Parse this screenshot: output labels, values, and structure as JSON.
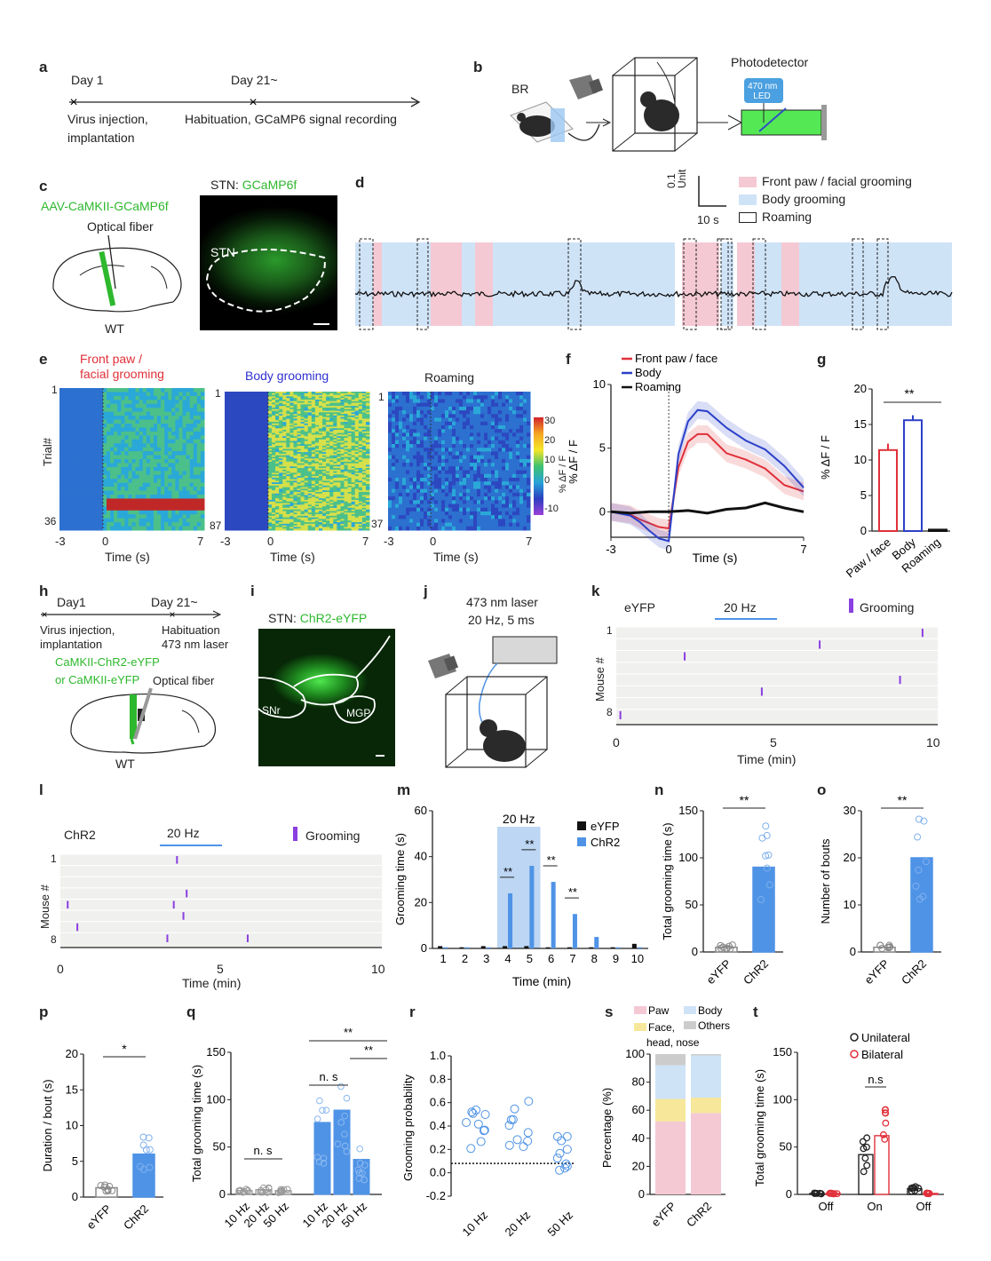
{
  "labels": {
    "a": "a",
    "b": "b",
    "c": "c",
    "d": "d",
    "e": "e",
    "f": "f",
    "g": "g",
    "h": "h",
    "i": "i",
    "j": "j",
    "k": "k",
    "l": "l",
    "m": "m",
    "n": "n",
    "o": "o",
    "p": "p",
    "q": "q",
    "r": "r",
    "s": "s",
    "t": "t"
  },
  "panel_a": {
    "day1": "Day 1",
    "day21": "Day 21~",
    "event1_l1": "Virus injection,",
    "event1_l2": "implantation",
    "event2": "Habituation, GCaMP6 signal recording"
  },
  "panel_b": {
    "br": "BR",
    "photodetector": "Photodetector",
    "led_l1": "470 nm",
    "led_l2": "LED"
  },
  "panel_c": {
    "virus": "AAV-CaMKII-GCaMP6f",
    "fiber": "Optical fiber",
    "wt": "WT",
    "title_prefix": "STN: ",
    "title_green": "GCaMP6f",
    "stn": "STN"
  },
  "panel_d": {
    "legend": [
      "Front paw / facial grooming",
      "Body grooming",
      "Roaming"
    ],
    "scale_y_l1": "0.1",
    "scale_y_l2": "Unit",
    "scale_x": "10 s"
  },
  "panel_e": {
    "titles": [
      "Front paw /",
      "facial grooming",
      "Body grooming",
      "Roaming"
    ],
    "ylabel": "Trial#",
    "xlabel": "Time (s)",
    "trials": [
      "36",
      "87",
      "37"
    ],
    "first": "1",
    "xticks": [
      "-3",
      "0",
      "7"
    ],
    "cbar_ticks": [
      "30",
      "20",
      "10",
      "0",
      "-10"
    ],
    "cbar_label": "% ΔF / F"
  },
  "chart_data": [
    {
      "type": "line",
      "panel": "f",
      "ylabel": "% ΔF / F",
      "xlabel": "Time (s)",
      "xticks": [
        "-3",
        "0",
        "7"
      ],
      "yticks": [
        "0",
        "5",
        "10"
      ],
      "ylim": [
        -2,
        10
      ],
      "xlim": [
        -3,
        7
      ],
      "series": [
        {
          "name": "Front paw / face",
          "color": "#e0303a",
          "x": [
            -3,
            -2,
            -1.5,
            -1,
            -0.5,
            0,
            0.5,
            1,
            1.5,
            2,
            3,
            4,
            5,
            6,
            7
          ],
          "values": [
            0,
            -0.2,
            -0.6,
            -0.9,
            -1.2,
            -1.3,
            3.5,
            5.5,
            6.1,
            6.1,
            4.6,
            4.1,
            3.4,
            2.1,
            1.6
          ]
        },
        {
          "name": "Body",
          "color": "#2c40c8",
          "x": [
            -3,
            -2,
            -1.5,
            -1,
            -0.5,
            0,
            0.5,
            1,
            1.5,
            2,
            3,
            4,
            5,
            6,
            7
          ],
          "values": [
            0,
            -0.3,
            -0.8,
            -1.5,
            -2.1,
            -2.3,
            4.5,
            7.1,
            8.0,
            7.9,
            6.6,
            5.6,
            4.9,
            3.6,
            1.9
          ]
        },
        {
          "name": "Roaming",
          "color": "#111111",
          "x": [
            -3,
            -2,
            -1,
            0,
            1,
            2,
            3,
            4,
            5,
            6,
            7
          ],
          "values": [
            0,
            -0.1,
            0,
            0,
            0.1,
            -0.1,
            0.2,
            0.3,
            0.7,
            0.3,
            0
          ]
        }
      ]
    },
    {
      "type": "bar",
      "panel": "g",
      "ylabel": "% ΔF / F",
      "categories": [
        "Paw / face",
        "Body",
        "Roaming"
      ],
      "values": [
        11.4,
        15.6,
        0.2
      ],
      "errors": [
        0.9,
        0.7,
        0.1
      ],
      "ylim": [
        0,
        20
      ],
      "yticks": [
        "0",
        "5",
        "10",
        "15",
        "20"
      ],
      "significance": "**"
    },
    {
      "type": "bar",
      "panel": "m",
      "ylabel": "Grooming time (s)",
      "xlabel": "Time (min)",
      "categories": [
        "1",
        "2",
        "3",
        "4",
        "5",
        "6",
        "7",
        "8",
        "9",
        "10"
      ],
      "ylim": [
        0,
        60
      ],
      "yticks": [
        "0",
        "20",
        "40",
        "60"
      ],
      "stim": "20 Hz",
      "series": [
        {
          "name": "eYFP",
          "values": [
            1,
            0.5,
            1,
            1,
            1,
            0.5,
            0.5,
            0.5,
            0.5,
            2
          ]
        },
        {
          "name": "ChR2",
          "values": [
            0.5,
            0.5,
            0.5,
            24,
            36,
            29,
            15,
            5,
            0.5,
            0.5
          ]
        }
      ],
      "significance": [
        "**",
        "**",
        "**",
        "**"
      ]
    },
    {
      "type": "bar",
      "panel": "n",
      "ylabel": "Total grooming time (s)",
      "categories": [
        "eYFP",
        "ChR2"
      ],
      "values": [
        5,
        90
      ],
      "ylim": [
        0,
        150
      ],
      "yticks": [
        "0",
        "50",
        "100",
        "150"
      ],
      "significance": "**"
    },
    {
      "type": "bar",
      "panel": "o",
      "ylabel": "Number of bouts",
      "categories": [
        "eYFP",
        "ChR2"
      ],
      "values": [
        1,
        20
      ],
      "ylim": [
        0,
        30
      ],
      "yticks": [
        "0",
        "10",
        "20",
        "30"
      ],
      "significance": "**"
    },
    {
      "type": "bar",
      "panel": "p",
      "ylabel": "Duration / bout (s)",
      "categories": [
        "eYFP",
        "ChR2"
      ],
      "values": [
        1.3,
        6
      ],
      "ylim": [
        0,
        20
      ],
      "yticks": [
        "0",
        "5",
        "10",
        "15",
        "20"
      ],
      "significance": "*"
    },
    {
      "type": "bar",
      "panel": "q",
      "ylabel": "Total grooming time (s)",
      "categories": [
        "10 Hz",
        "20 Hz",
        "50 Hz",
        "10 Hz",
        "20 Hz",
        "50 Hz"
      ],
      "values": [
        4,
        5,
        4,
        76,
        89,
        37
      ],
      "ylim": [
        0,
        150
      ],
      "yticks": [
        "0",
        "50",
        "100",
        "150"
      ],
      "annotations": [
        "n. s",
        "n. s",
        "**",
        "**"
      ]
    },
    {
      "type": "scatter",
      "panel": "r",
      "ylabel": "Grooming probability",
      "categories": [
        "10 Hz",
        "20 Hz",
        "50 Hz"
      ],
      "ylim": [
        -0.2,
        1.0
      ],
      "yticks": [
        "-0.2",
        "0.0",
        "0.2",
        "0.4",
        "0.6",
        "0.8",
        "1.0"
      ],
      "baseline": 0.08
    },
    {
      "type": "bar",
      "panel": "s",
      "ylabel": "Percentage (%)",
      "categories": [
        "eYFP",
        "ChR2"
      ],
      "ylim": [
        0,
        100
      ],
      "yticks": [
        "0",
        "20",
        "40",
        "60",
        "80",
        "100"
      ],
      "legend": [
        "Paw",
        "Body",
        "Face,",
        "head, nose",
        "Others"
      ],
      "series": [
        {
          "name": "Paw",
          "values": [
            52,
            58
          ]
        },
        {
          "name": "Face, head, nose",
          "values": [
            16,
            11
          ]
        },
        {
          "name": "Body",
          "values": [
            24,
            30
          ]
        },
        {
          "name": "Others",
          "values": [
            8,
            1
          ]
        }
      ]
    },
    {
      "type": "bar",
      "panel": "t",
      "ylabel": "Total grooming time (s)",
      "categories": [
        "Off",
        "On",
        "Off"
      ],
      "ylim": [
        0,
        150
      ],
      "yticks": [
        "0",
        "50",
        "100",
        "150"
      ],
      "series": [
        {
          "name": "Unilateral",
          "values": [
            1,
            42,
            6
          ]
        },
        {
          "name": "Bilateral",
          "values": [
            1,
            62,
            1
          ]
        }
      ],
      "annotation": "n.s"
    }
  ],
  "panel_h": {
    "day1": "Day1",
    "day21": "Day 21~",
    "e1_l1": "Virus injection,",
    "e1_l2": "implantation",
    "e2_l1": "Habituation",
    "e2_l2": "473 nm laser",
    "virus_l1": "CaMKII-ChR2-eYFP",
    "virus_l2": "or CaMKII-eYFP",
    "fiber": "Optical fiber",
    "wt": "WT"
  },
  "panel_i": {
    "title_prefix": "STN: ",
    "title_green": "ChR2-eYFP",
    "snr": "SNr",
    "mgp": "MGP"
  },
  "panel_j": {
    "l1": "473 nm laser",
    "l2": "20 Hz, 5 ms"
  },
  "panel_k": {
    "group": "eYFP",
    "stim": "20 Hz",
    "legend": "Grooming",
    "ylabel": "Mouse #",
    "first": "1",
    "last": "8",
    "xticks": [
      "0",
      "5",
      "10"
    ],
    "xlabel": "Time (min)"
  },
  "panel_l": {
    "group": "ChR2",
    "stim": "20 Hz",
    "legend": "Grooming",
    "ylabel": "Mouse #",
    "first": "1",
    "last": "8",
    "xticks": [
      "0",
      "5",
      "10"
    ],
    "xlabel": "Time (min)"
  },
  "panel_m_legend": [
    "eYFP",
    "ChR2"
  ],
  "panel_t_legend": [
    "Unilateral",
    "Bilateral"
  ],
  "colors": {
    "paw": "#f4c9d4",
    "body": "#cfe3f7",
    "face": "#f7e79a",
    "others": "#cccccc",
    "chr2": "#4f93e6",
    "purple": "#8a3fe0",
    "green": "#2eb82e"
  }
}
